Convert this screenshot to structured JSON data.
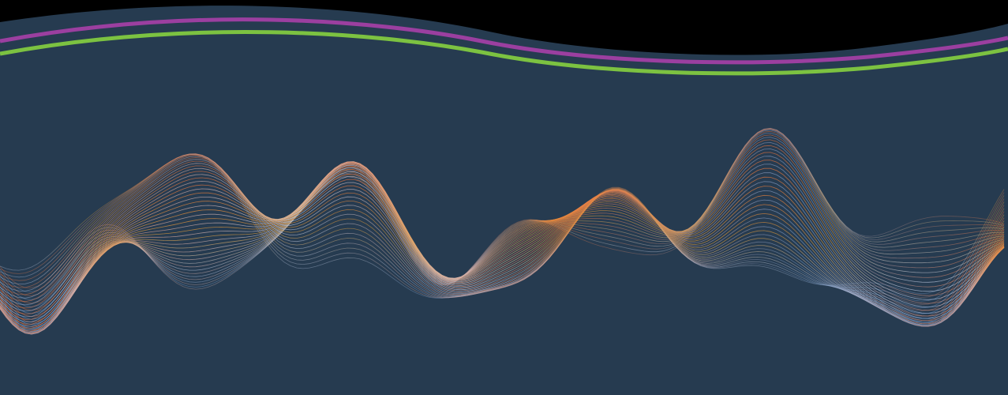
{
  "colors": {
    "background_top": "#000000",
    "panel": "#263b50",
    "stripe_purple": "#9b3fa0",
    "stripe_green": "#7cc241",
    "wave_warm": "#f0743a",
    "wave_orange": "#e8a23a",
    "wave_cool": "#7aa3d6",
    "wave_pale": "#c9d3ea"
  },
  "artwork": {
    "panel": "wavy-top-panel",
    "stripes": [
      "purple-stripe",
      "green-stripe"
    ],
    "waves": "layered-sound-wave-mesh"
  }
}
